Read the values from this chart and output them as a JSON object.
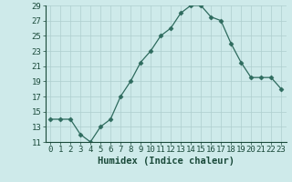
{
  "x": [
    0,
    1,
    2,
    3,
    4,
    5,
    6,
    7,
    8,
    9,
    10,
    11,
    12,
    13,
    14,
    15,
    16,
    17,
    18,
    19,
    20,
    21,
    22,
    23
  ],
  "y": [
    14,
    14,
    14,
    12,
    11,
    13,
    14,
    17,
    19,
    21.5,
    23,
    25,
    26,
    28,
    29,
    29,
    27.5,
    27,
    24,
    21.5,
    19.5,
    19.5,
    19.5,
    18
  ],
  "xlabel": "Humidex (Indice chaleur)",
  "line_color": "#2e6b5e",
  "marker": "D",
  "marker_size": 2.5,
  "bg_color": "#ceeaea",
  "grid_color": "#aecece",
  "ylim": [
    11,
    29
  ],
  "yticks": [
    11,
    13,
    15,
    17,
    19,
    21,
    23,
    25,
    27,
    29
  ],
  "xticks": [
    0,
    1,
    2,
    3,
    4,
    5,
    6,
    7,
    8,
    9,
    10,
    11,
    12,
    13,
    14,
    15,
    16,
    17,
    18,
    19,
    20,
    21,
    22,
    23
  ],
  "tick_label_fontsize": 6.5,
  "xlabel_fontsize": 7.5,
  "text_color": "#1a4a3a"
}
